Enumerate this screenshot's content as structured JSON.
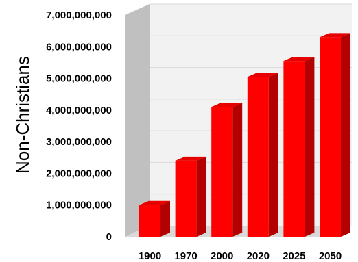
{
  "chart_data": {
    "type": "bar",
    "title": "",
    "xlabel": "",
    "ylabel": "Non-Christians",
    "categories": [
      "1900",
      "1970",
      "2000",
      "2020",
      "2025",
      "2050"
    ],
    "values": [
      1000000000,
      2400000000,
      4100000000,
      5050000000,
      5550000000,
      6300000000
    ],
    "ylim": [
      0,
      7000000000
    ],
    "yticks": [
      0,
      1000000000,
      2000000000,
      3000000000,
      4000000000,
      5000000000,
      6000000000,
      7000000000
    ],
    "ytick_labels": [
      "0",
      "1,000,000,000",
      "2,000,000,000",
      "3,000,000,000",
      "4,000,000,000",
      "5,000,000,000",
      "6,000,000,000",
      "7,000,000,000"
    ],
    "grid": true,
    "style": "3d",
    "colors": {
      "bar_front": "#ff0000",
      "bar_side": "#b30000",
      "bar_top": "#e60000",
      "wall_side": "#c0c0c0",
      "wall_back": "#f2f2f2",
      "floor": "#d9d9d9",
      "grid": "#d9d9d9"
    }
  }
}
